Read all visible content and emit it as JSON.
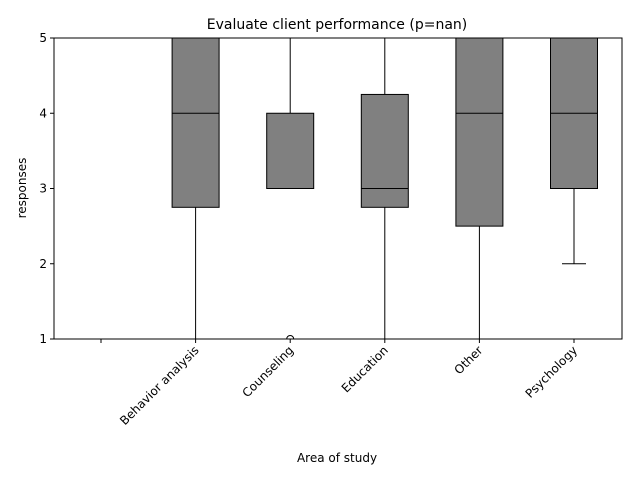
{
  "chart_data": {
    "type": "box",
    "title": "Evaluate client performance (p=nan)",
    "xlabel": "Area of study",
    "ylabel": "responses",
    "ylim": [
      1,
      5
    ],
    "yticks": [
      "1",
      "2",
      "3",
      "4",
      "5"
    ],
    "categories": [
      "",
      "Behavior analysis",
      "Counseling",
      "Education",
      "Other",
      "Psychology"
    ],
    "boxes": [
      null,
      {
        "whisker_low": 1,
        "q1": 2.75,
        "median": 4,
        "q3": 5,
        "whisker_high": 5,
        "outliers": []
      },
      {
        "whisker_low": 3,
        "q1": 3,
        "median": 3,
        "q3": 4,
        "whisker_high": 5,
        "outliers": [
          1
        ]
      },
      {
        "whisker_low": 1,
        "q1": 2.75,
        "median": 3,
        "q3": 4.25,
        "whisker_high": 5,
        "outliers": []
      },
      {
        "whisker_low": 1,
        "q1": 2.5,
        "median": 4,
        "q3": 5,
        "whisker_high": 5,
        "outliers": []
      },
      {
        "whisker_low": 2,
        "q1": 3,
        "median": 4,
        "q3": 5,
        "whisker_high": 5,
        "outliers": []
      }
    ],
    "box_color": "#808080",
    "line_color": "#000000",
    "grid": false,
    "legend": false
  }
}
